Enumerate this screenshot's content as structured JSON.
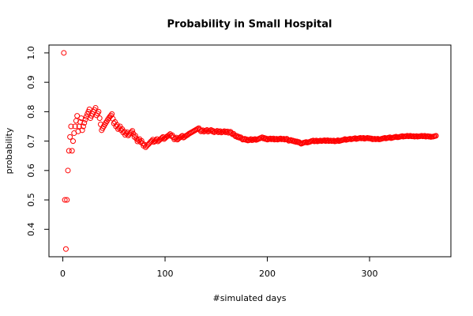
{
  "chart_data": {
    "type": "scatter",
    "title": "Probability in Small Hospital",
    "x_label": "#simulated days",
    "y_label": "probability",
    "color": "#ff0000",
    "x": [
      1,
      2,
      3,
      4,
      5,
      6,
      7,
      8,
      9,
      10,
      11,
      12,
      13,
      14,
      15,
      16,
      17,
      18,
      19,
      20,
      21,
      22,
      23,
      24,
      25,
      26,
      27,
      28,
      29,
      30,
      31,
      32,
      33,
      34,
      35,
      36,
      37,
      38,
      39,
      40,
      41,
      42,
      43,
      44,
      45,
      46,
      47,
      48,
      49,
      50,
      51,
      52,
      53,
      54,
      55,
      56,
      57,
      58,
      59,
      60,
      61,
      62,
      63,
      64,
      65,
      66,
      67,
      68,
      69,
      70,
      71,
      72,
      73,
      74,
      75,
      76,
      77,
      78,
      79,
      80,
      81,
      82,
      83,
      84,
      85,
      86,
      87,
      88,
      89,
      90,
      91,
      92,
      93,
      94,
      95,
      96,
      97,
      98,
      99,
      100,
      101,
      102,
      103,
      104,
      105,
      106,
      107,
      108,
      109,
      110,
      111,
      112,
      113,
      114,
      115,
      116,
      117,
      118,
      119,
      120,
      121,
      122,
      123,
      124,
      125,
      126,
      127,
      128,
      129,
      130,
      131,
      132,
      133,
      134,
      135,
      136,
      137,
      138,
      139,
      140,
      141,
      142,
      143,
      144,
      145,
      146,
      147,
      148,
      149,
      150,
      151,
      152,
      153,
      154,
      155,
      156,
      157,
      158,
      159,
      160,
      161,
      162,
      163,
      164,
      165,
      166,
      167,
      168,
      169,
      170,
      171,
      172,
      173,
      174,
      175,
      176,
      177,
      178,
      179,
      180,
      181,
      182,
      183,
      184,
      185,
      186,
      187,
      188,
      189,
      190,
      191,
      192,
      193,
      194,
      195,
      196,
      197,
      198,
      199,
      200,
      201,
      202,
      203,
      204,
      205,
      206,
      207,
      208,
      209,
      210,
      211,
      212,
      213,
      214,
      215,
      216,
      217,
      218,
      219,
      220,
      221,
      222,
      223,
      224,
      225,
      226,
      227,
      228,
      229,
      230,
      231,
      232,
      233,
      234,
      235,
      236,
      237,
      238,
      239,
      240,
      241,
      242,
      243,
      244,
      245,
      246,
      247,
      248,
      249,
      250,
      251,
      252,
      253,
      254,
      255,
      256,
      257,
      258,
      259,
      260,
      261,
      262,
      263,
      264,
      265,
      266,
      267,
      268,
      269,
      270,
      271,
      272,
      273,
      274,
      275,
      276,
      277,
      278,
      279,
      280,
      281,
      282,
      283,
      284,
      285,
      286,
      287,
      288,
      289,
      290,
      291,
      292,
      293,
      294,
      295,
      296,
      297,
      298,
      299,
      300,
      301,
      302,
      303,
      304,
      305,
      306,
      307,
      308,
      309,
      310,
      311,
      312,
      313,
      314,
      315,
      316,
      317,
      318,
      319,
      320,
      321,
      322,
      323,
      324,
      325,
      326,
      327,
      328,
      329,
      330,
      331,
      332,
      333,
      334,
      335,
      336,
      337,
      338,
      339,
      340,
      341,
      342,
      343,
      344,
      345,
      346,
      347,
      348,
      349,
      350,
      351,
      352,
      353,
      354,
      355,
      356,
      357,
      358,
      359,
      360,
      361,
      362,
      363,
      364,
      365
    ],
    "values": [
      1.0,
      0.5,
      0.333,
      0.5,
      0.6,
      0.667,
      0.714,
      0.75,
      0.667,
      0.7,
      0.727,
      0.75,
      0.769,
      0.786,
      0.733,
      0.75,
      0.765,
      0.778,
      0.737,
      0.75,
      0.762,
      0.773,
      0.783,
      0.792,
      0.8,
      0.808,
      0.778,
      0.786,
      0.793,
      0.8,
      0.806,
      0.813,
      0.788,
      0.794,
      0.8,
      0.778,
      0.757,
      0.737,
      0.744,
      0.75,
      0.756,
      0.762,
      0.767,
      0.773,
      0.778,
      0.783,
      0.787,
      0.792,
      0.776,
      0.76,
      0.765,
      0.75,
      0.755,
      0.741,
      0.745,
      0.75,
      0.737,
      0.741,
      0.729,
      0.733,
      0.721,
      0.726,
      0.73,
      0.719,
      0.723,
      0.727,
      0.731,
      0.735,
      0.725,
      0.714,
      0.718,
      0.708,
      0.699,
      0.703,
      0.707,
      0.697,
      0.701,
      0.692,
      0.684,
      0.688,
      0.679,
      0.683,
      0.687,
      0.69,
      0.694,
      0.698,
      0.701,
      0.705,
      0.697,
      0.7,
      0.703,
      0.707,
      0.699,
      0.702,
      0.705,
      0.708,
      0.711,
      0.714,
      0.707,
      0.71,
      0.713,
      0.716,
      0.718,
      0.721,
      0.724,
      0.717,
      0.72,
      0.713,
      0.706,
      0.709,
      0.712,
      0.705,
      0.708,
      0.711,
      0.713,
      0.716,
      0.718,
      0.712,
      0.714,
      0.717,
      0.719,
      0.721,
      0.724,
      0.726,
      0.728,
      0.73,
      0.732,
      0.734,
      0.736,
      0.738,
      0.74,
      0.742,
      0.744,
      0.739,
      0.733,
      0.735,
      0.737,
      0.732,
      0.734,
      0.736,
      0.738,
      0.732,
      0.734,
      0.736,
      0.738,
      0.733,
      0.735,
      0.73,
      0.732,
      0.733,
      0.735,
      0.73,
      0.732,
      0.734,
      0.729,
      0.731,
      0.732,
      0.734,
      0.73,
      0.731,
      0.733,
      0.728,
      0.73,
      0.732,
      0.727,
      0.723,
      0.725,
      0.72,
      0.716,
      0.718,
      0.713,
      0.715,
      0.711,
      0.713,
      0.709,
      0.705,
      0.706,
      0.708,
      0.704,
      0.706,
      0.702,
      0.703,
      0.705,
      0.707,
      0.703,
      0.704,
      0.706,
      0.707,
      0.704,
      0.705,
      0.707,
      0.708,
      0.71,
      0.711,
      0.713,
      0.709,
      0.711,
      0.707,
      0.709,
      0.705,
      0.706,
      0.708,
      0.709,
      0.706,
      0.707,
      0.709,
      0.705,
      0.707,
      0.708,
      0.705,
      0.706,
      0.708,
      0.709,
      0.706,
      0.707,
      0.708,
      0.705,
      0.706,
      0.708,
      0.705,
      0.701,
      0.703,
      0.704,
      0.701,
      0.702,
      0.699,
      0.7,
      0.697,
      0.699,
      0.696,
      0.697,
      0.694,
      0.691,
      0.692,
      0.694,
      0.695,
      0.696,
      0.697,
      0.695,
      0.696,
      0.697,
      0.698,
      0.7,
      0.701,
      0.702,
      0.699,
      0.7,
      0.702,
      0.699,
      0.7,
      0.701,
      0.702,
      0.7,
      0.701,
      0.702,
      0.703,
      0.7,
      0.702,
      0.703,
      0.7,
      0.701,
      0.702,
      0.7,
      0.701,
      0.702,
      0.699,
      0.7,
      0.701,
      0.703,
      0.7,
      0.701,
      0.702,
      0.703,
      0.704,
      0.705,
      0.707,
      0.704,
      0.705,
      0.706,
      0.707,
      0.708,
      0.706,
      0.707,
      0.708,
      0.709,
      0.71,
      0.707,
      0.708,
      0.709,
      0.71,
      0.711,
      0.709,
      0.71,
      0.711,
      0.708,
      0.709,
      0.71,
      0.711,
      0.709,
      0.71,
      0.708,
      0.709,
      0.706,
      0.707,
      0.708,
      0.706,
      0.707,
      0.708,
      0.706,
      0.706,
      0.707,
      0.708,
      0.709,
      0.71,
      0.711,
      0.709,
      0.71,
      0.711,
      0.712,
      0.713,
      0.71,
      0.711,
      0.712,
      0.713,
      0.714,
      0.715,
      0.713,
      0.713,
      0.714,
      0.715,
      0.716,
      0.717,
      0.715,
      0.716,
      0.716,
      0.717,
      0.718,
      0.716,
      0.717,
      0.718,
      0.716,
      0.716,
      0.717,
      0.715,
      0.716,
      0.717,
      0.715,
      0.716,
      0.716,
      0.717,
      0.718,
      0.716,
      0.717,
      0.718,
      0.715,
      0.716,
      0.717,
      0.715,
      0.716,
      0.714,
      0.715,
      0.715,
      0.716,
      0.717,
      0.718
    ],
    "xlim": [
      -13.56,
      379.56
    ],
    "xticks": [
      0,
      100,
      200,
      300
    ],
    "ylim": [
      0.3067,
      1.0267
    ],
    "yticks": [
      0.4,
      0.5,
      0.6,
      0.7,
      0.8,
      0.9,
      {
        "value": 1,
        "label": "1.0"
      }
    ]
  }
}
